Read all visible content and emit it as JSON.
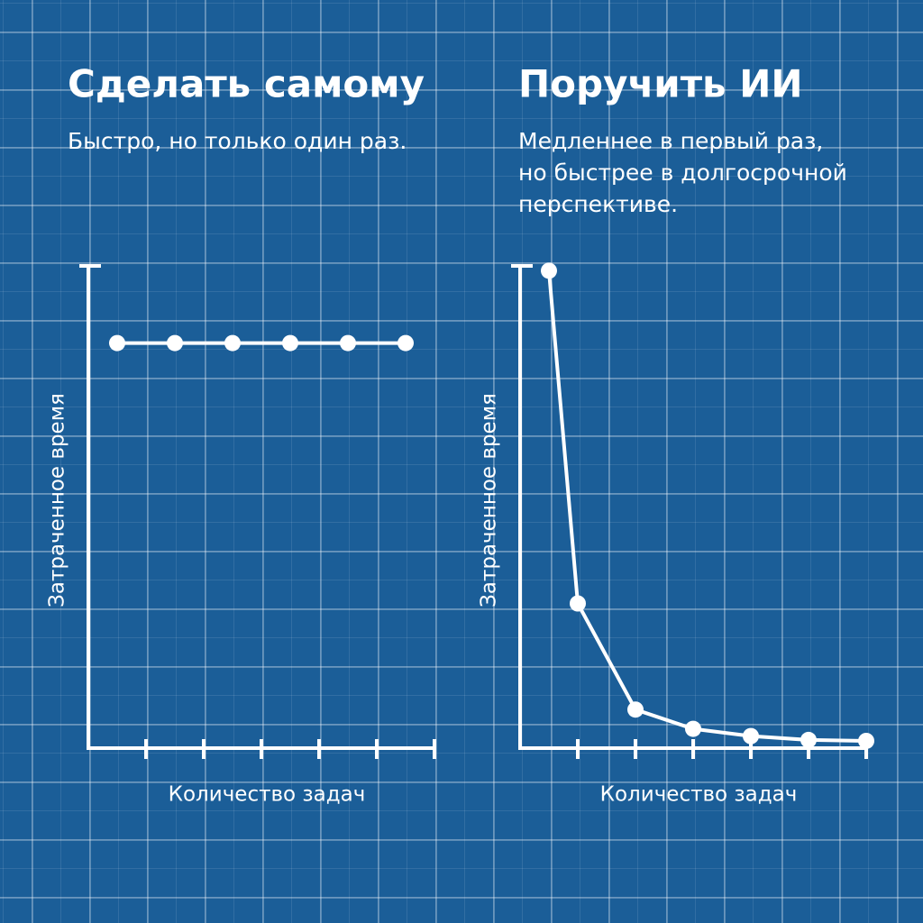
{
  "chart_data": [
    {
      "type": "line",
      "title": "Сделать самому",
      "subtitle": [
        "Быстро, но только один раз."
      ],
      "x_label": "Количество задач",
      "y_label": "Затраченное время",
      "x": [
        0.5,
        1.5,
        2.5,
        3.5,
        4.5,
        5.5
      ],
      "values": [
        84,
        84,
        84,
        84,
        84,
        84
      ],
      "color": "#ffffff",
      "xlim": [
        0,
        6
      ],
      "xticks": [
        1,
        2,
        3,
        4,
        5,
        6
      ],
      "ylim": [
        0,
        100
      ]
    },
    {
      "type": "line",
      "title": "Поручить ИИ",
      "subtitle": [
        "Медленнее в первый раз,",
        "но быстрее в долгосрочной",
        "перспективе."
      ],
      "x_label": "Количество задач",
      "y_label": "Затраченное время",
      "x": [
        0.5,
        1,
        2,
        3,
        4,
        5,
        6
      ],
      "values": [
        99,
        30,
        8,
        4,
        2.5,
        1.7,
        1.5
      ],
      "color": "#ffffff",
      "xlim": [
        0,
        6
      ],
      "xticks": [
        1,
        2,
        3,
        4,
        5,
        6
      ],
      "ylim": [
        0,
        100
      ]
    }
  ]
}
